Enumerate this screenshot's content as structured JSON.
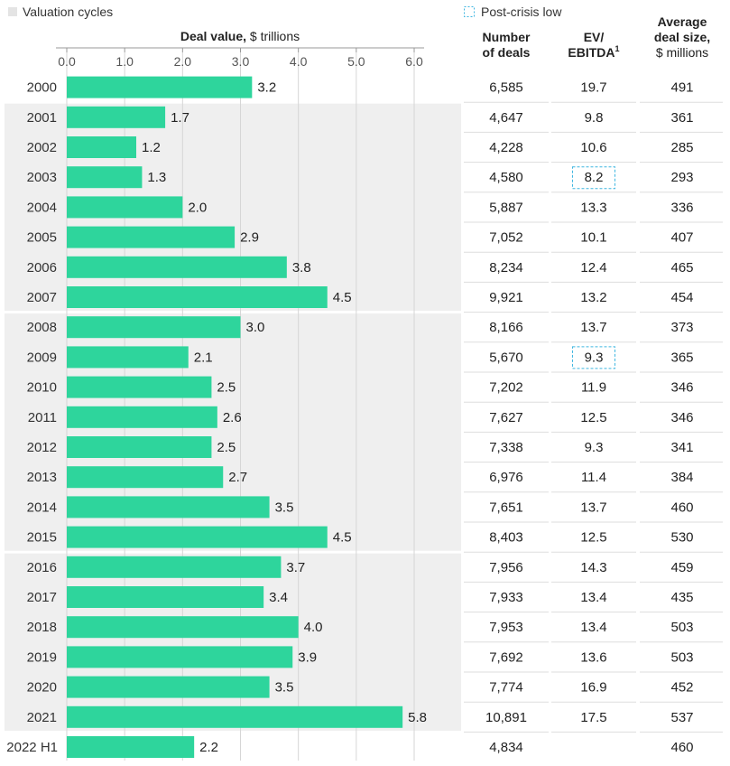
{
  "legend": {
    "valuation_cycles": "Valuation cycles",
    "post_crisis_low": "Post-crisis low"
  },
  "axis": {
    "title_bold": "Deal value,",
    "title_rest": " $ trillions",
    "ticks": [
      "0.0",
      "1.0",
      "2.0",
      "3.0",
      "4.0",
      "5.0",
      "6.0"
    ]
  },
  "columns": {
    "deals_line1": "Number",
    "deals_line2": "of deals",
    "ev_line1": "EV/",
    "ev_line2": "EBITDA",
    "ev_sup": "1",
    "size_line1": "Average",
    "size_line2": "deal size,",
    "size_line3": "$ millions"
  },
  "colors": {
    "bar": "#2ed59c",
    "band": "#efefef",
    "dashed_box": "#3fb6e0",
    "grid": "#d6d6d6"
  },
  "chart_data": {
    "type": "bar",
    "orientation": "horizontal",
    "xlim": [
      0,
      6
    ],
    "grid": true,
    "cycles": [
      {
        "start": "2001",
        "end": "2007"
      },
      {
        "start": "2008",
        "end": "2015"
      },
      {
        "start": "2016",
        "end": "2021"
      }
    ],
    "post_crisis_low": [
      "2003",
      "2009"
    ],
    "rows": [
      {
        "year": "2000",
        "value": 3.2,
        "label": "3.2",
        "deals": "6,585",
        "ev": "19.7",
        "size": "491"
      },
      {
        "year": "2001",
        "value": 1.7,
        "label": "1.7",
        "deals": "4,647",
        "ev": "9.8",
        "size": "361"
      },
      {
        "year": "2002",
        "value": 1.2,
        "label": "1.2",
        "deals": "4,228",
        "ev": "10.6",
        "size": "285"
      },
      {
        "year": "2003",
        "value": 1.3,
        "label": "1.3",
        "deals": "4,580",
        "ev": "8.2",
        "size": "293"
      },
      {
        "year": "2004",
        "value": 2.0,
        "label": "2.0",
        "deals": "5,887",
        "ev": "13.3",
        "size": "336"
      },
      {
        "year": "2005",
        "value": 2.9,
        "label": "2.9",
        "deals": "7,052",
        "ev": "10.1",
        "size": "407"
      },
      {
        "year": "2006",
        "value": 3.8,
        "label": "3.8",
        "deals": "8,234",
        "ev": "12.4",
        "size": "465"
      },
      {
        "year": "2007",
        "value": 4.5,
        "label": "4.5",
        "deals": "9,921",
        "ev": "13.2",
        "size": "454"
      },
      {
        "year": "2008",
        "value": 3.0,
        "label": "3.0",
        "deals": "8,166",
        "ev": "13.7",
        "size": "373"
      },
      {
        "year": "2009",
        "value": 2.1,
        "label": "2.1",
        "deals": "5,670",
        "ev": "9.3",
        "size": "365"
      },
      {
        "year": "2010",
        "value": 2.5,
        "label": "2.5",
        "deals": "7,202",
        "ev": "11.9",
        "size": "346"
      },
      {
        "year": "2011",
        "value": 2.6,
        "label": "2.6",
        "deals": "7,627",
        "ev": "12.5",
        "size": "346"
      },
      {
        "year": "2012",
        "value": 2.5,
        "label": "2.5",
        "deals": "7,338",
        "ev": "9.3",
        "size": "341"
      },
      {
        "year": "2013",
        "value": 2.7,
        "label": "2.7",
        "deals": "6,976",
        "ev": "11.4",
        "size": "384"
      },
      {
        "year": "2014",
        "value": 3.5,
        "label": "3.5",
        "deals": "7,651",
        "ev": "13.7",
        "size": "460"
      },
      {
        "year": "2015",
        "value": 4.5,
        "label": "4.5",
        "deals": "8,403",
        "ev": "12.5",
        "size": "530"
      },
      {
        "year": "2016",
        "value": 3.7,
        "label": "3.7",
        "deals": "7,956",
        "ev": "14.3",
        "size": "459"
      },
      {
        "year": "2017",
        "value": 3.4,
        "label": "3.4",
        "deals": "7,933",
        "ev": "13.4",
        "size": "435"
      },
      {
        "year": "2018",
        "value": 4.0,
        "label": "4.0",
        "deals": "7,953",
        "ev": "13.4",
        "size": "503"
      },
      {
        "year": "2019",
        "value": 3.9,
        "label": "3.9",
        "deals": "7,692",
        "ev": "13.6",
        "size": "503"
      },
      {
        "year": "2020",
        "value": 3.5,
        "label": "3.5",
        "deals": "7,774",
        "ev": "16.9",
        "size": "452"
      },
      {
        "year": "2021",
        "value": 5.8,
        "label": "5.8",
        "deals": "10,891",
        "ev": "17.5",
        "size": "537"
      },
      {
        "year": "2022 H1",
        "value": 2.2,
        "label": "2.2",
        "deals": "4,834",
        "ev": "",
        "size": "460"
      }
    ]
  }
}
